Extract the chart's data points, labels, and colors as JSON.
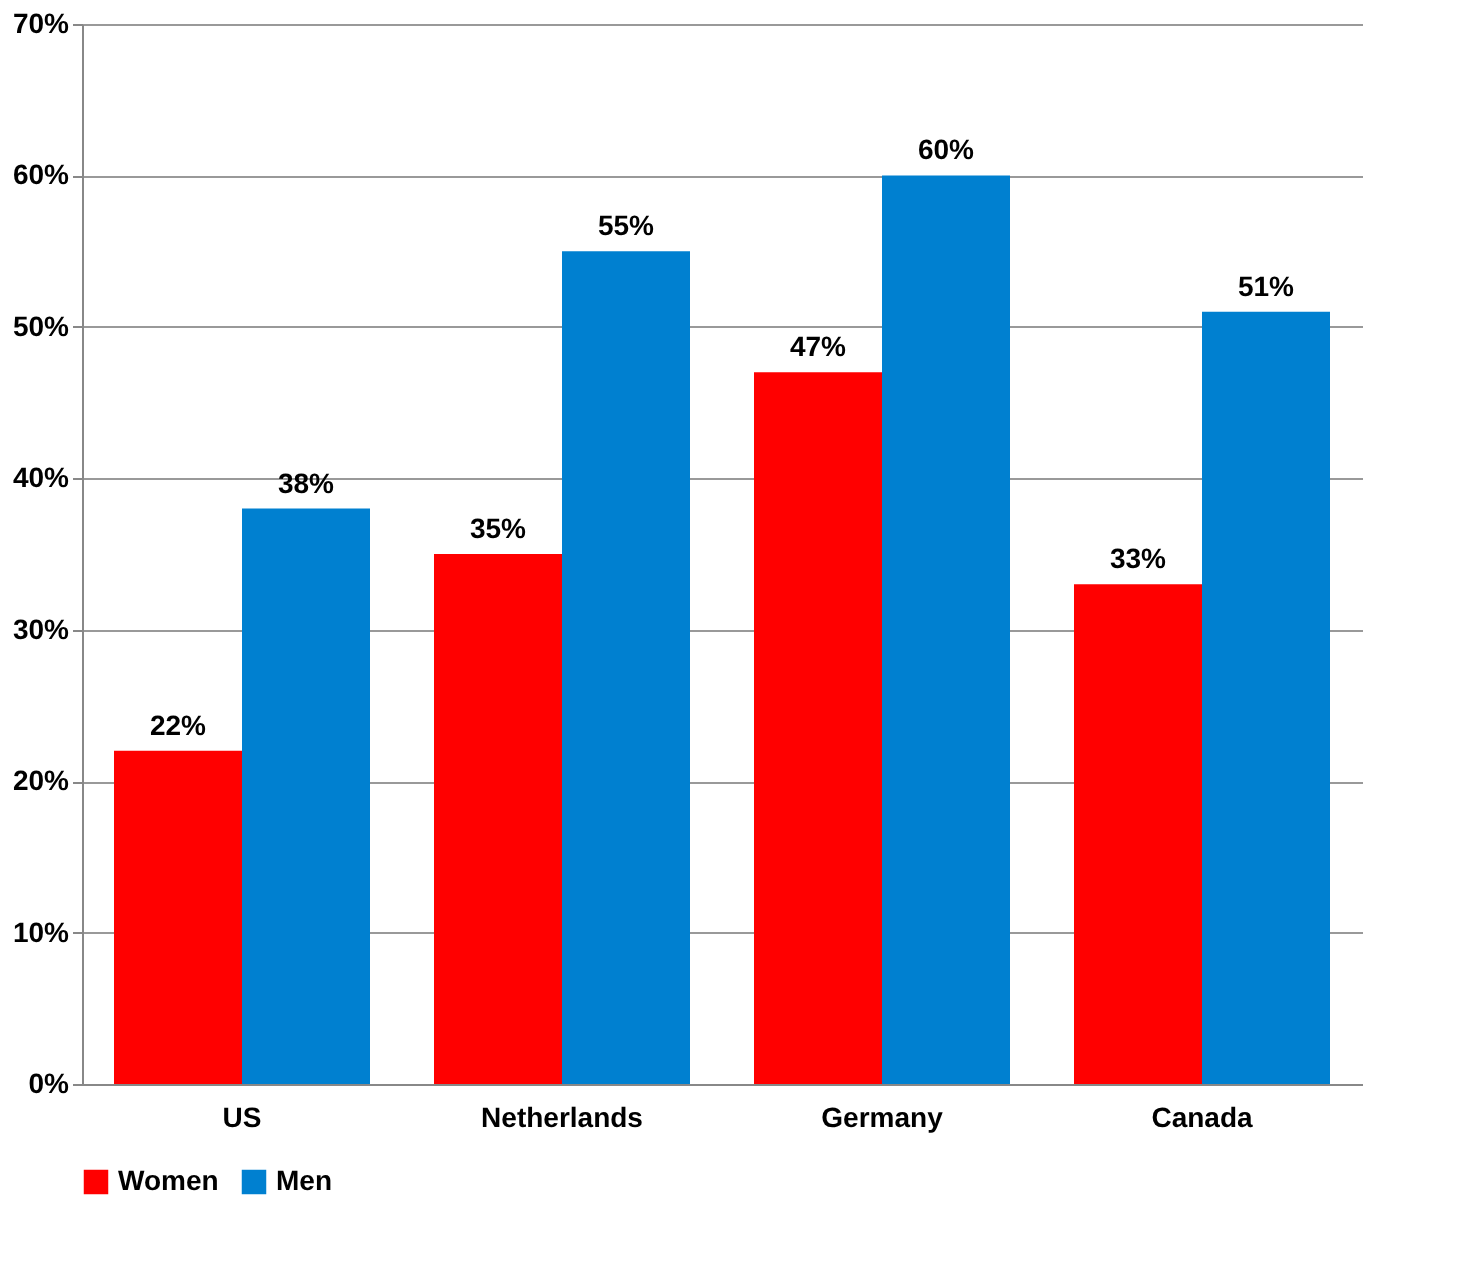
{
  "chart_data": {
    "type": "bar",
    "categories": [
      "US",
      "Netherlands",
      "Germany",
      "Canada"
    ],
    "series": [
      {
        "name": "Women",
        "color": "#ff0000",
        "values": [
          22,
          35,
          47,
          33
        ],
        "value_labels": [
          "22%",
          "35%",
          "47%",
          "33%"
        ]
      },
      {
        "name": "Men",
        "color": "#0080d0",
        "values": [
          38,
          55,
          60,
          51
        ],
        "value_labels": [
          "38%",
          "55%",
          "60%",
          "51%"
        ]
      }
    ],
    "ylim": [
      0,
      70
    ],
    "yticks": [
      {
        "value": 0,
        "label": "0%"
      },
      {
        "value": 10,
        "label": "10%"
      },
      {
        "value": 20,
        "label": "20%"
      },
      {
        "value": 30,
        "label": "30%"
      },
      {
        "value": 40,
        "label": "40%"
      },
      {
        "value": 50,
        "label": "50%"
      },
      {
        "value": 60,
        "label": "60%"
      },
      {
        "value": 70,
        "label": "70%"
      }
    ],
    "grid": "y",
    "legend": "bottom"
  }
}
